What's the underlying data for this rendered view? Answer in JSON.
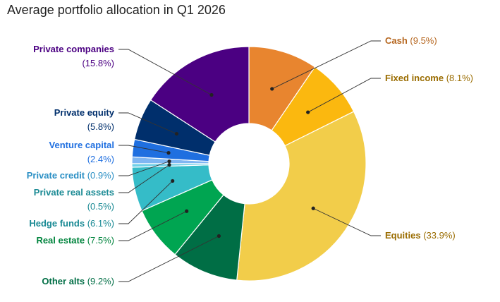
{
  "chart_data": {
    "type": "pie",
    "title": "Average portfolio allocation in Q1 2026",
    "donut": true,
    "slices": [
      {
        "name": "Cash",
        "value": 9.5,
        "value_label": "(9.5%)",
        "color": "#E8852F"
      },
      {
        "name": "Fixed income",
        "value": 8.1,
        "value_label": "(8.1%)",
        "color": "#FBB80F"
      },
      {
        "name": "Equities",
        "value": 33.9,
        "value_label": "(33.9%)",
        "color": "#F2CD4A"
      },
      {
        "name": "Other alts",
        "value": 9.2,
        "value_label": "(9.2%)",
        "color": "#006E45"
      },
      {
        "name": "Real estate",
        "value": 7.5,
        "value_label": "(7.5%)",
        "color": "#00A551"
      },
      {
        "name": "Hedge funds",
        "value": 6.1,
        "value_label": "(6.1%)",
        "color": "#35BCC8"
      },
      {
        "name": "Private real assets",
        "value": 0.5,
        "value_label": "(0.5%)",
        "color": "#6FCFE8"
      },
      {
        "name": "Private credit",
        "value": 0.9,
        "value_label": "(0.9%)",
        "color": "#7FB6F2"
      },
      {
        "name": "Venture capital",
        "value": 2.4,
        "value_label": "(2.4%)",
        "color": "#1F6FE0"
      },
      {
        "name": "Private equity",
        "value": 5.8,
        "value_label": "(5.8%)",
        "color": "#002F6C"
      },
      {
        "name": "Private companies",
        "value": 15.8,
        "value_label": "(15.8%)",
        "color": "#4B0082"
      }
    ]
  },
  "label_colors": {
    "Cash": "#B5651D",
    "Fixed income": "#9A6C00",
    "Equities": "#9A6C00",
    "Other alts": "#006E45",
    "Real estate": "#00843D",
    "Hedge funds": "#1A8A94",
    "Private real assets": "#1A8A94",
    "Private credit": "#2A8FC4",
    "Venture capital": "#1F6FE0",
    "Private equity": "#002F6C",
    "Private companies": "#4B0082"
  }
}
